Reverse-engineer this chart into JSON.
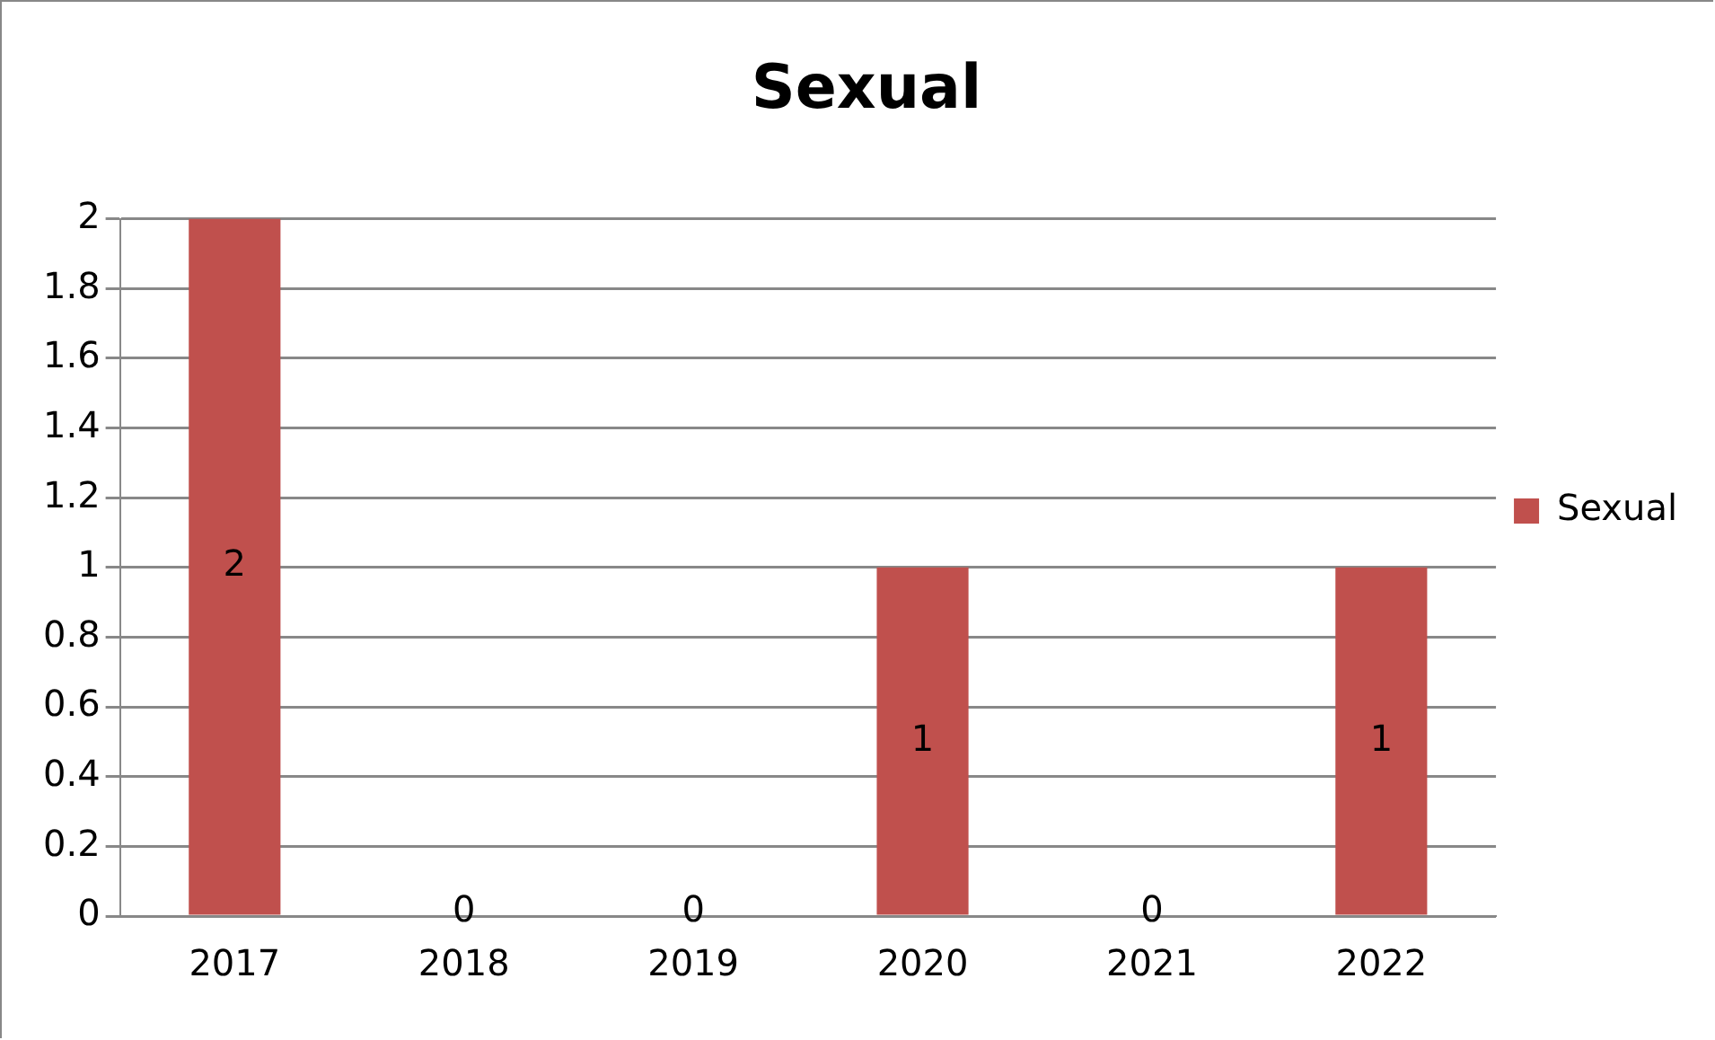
{
  "chart_data": {
    "type": "bar",
    "title": "Sexual",
    "categories": [
      "2017",
      "2018",
      "2019",
      "2020",
      "2021",
      "2022"
    ],
    "series": [
      {
        "name": "Sexual",
        "color": "#c0504d",
        "values": [
          2,
          0,
          0,
          1,
          0,
          1
        ]
      }
    ],
    "ylim": [
      0,
      2
    ],
    "yticks": [
      0,
      0.2,
      0.4,
      0.6,
      0.8,
      1,
      1.2,
      1.4,
      1.6,
      1.8,
      2
    ],
    "grid": "y",
    "legend": "right",
    "data_labels": true
  }
}
